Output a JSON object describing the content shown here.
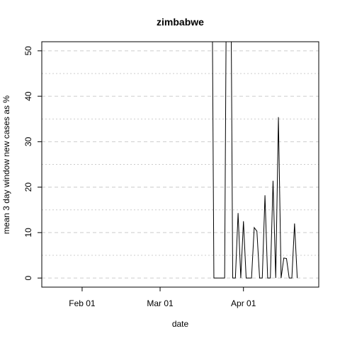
{
  "chart_data": {
    "type": "line",
    "title": "zimbabwe",
    "xlabel": "date",
    "ylabel": "mean  3  day window new cases as %",
    "x_ticks": [
      "Feb 01",
      "Mar 01",
      "Apr 01"
    ],
    "y_ticks": [
      "0",
      "10",
      "20",
      "30",
      "40",
      "50"
    ],
    "ylim": [
      -2,
      52
    ],
    "xlim": [
      "2020-01-17",
      "2020-04-29"
    ],
    "grid": true,
    "grid_style": "dashed-horizontal",
    "line_color": "#000000",
    "grid_color": "#cccccc",
    "series": [
      {
        "x": [
          "2020-03-20",
          "2020-03-21",
          "2020-03-22",
          "2020-03-23",
          "2020-03-24",
          "2020-03-25",
          "2020-03-26",
          "2020-03-27",
          "2020-03-28",
          "2020-03-29",
          "2020-03-30",
          "2020-03-31",
          "2020-04-01",
          "2020-04-02",
          "2020-04-03",
          "2020-04-04",
          "2020-04-05",
          "2020-04-06",
          "2020-04-07",
          "2020-04-08",
          "2020-04-09",
          "2020-04-10",
          "2020-04-11",
          "2020-04-12",
          "2020-04-13",
          "2020-04-14",
          "2020-04-15",
          "2020-04-16",
          "2020-04-17",
          "2020-04-18",
          "2020-04-19",
          "2020-04-20",
          "2020-04-21",
          "2020-04-22",
          "2020-04-23",
          "2020-04-24",
          "2020-04-25",
          "2020-04-26",
          "2020-04-27",
          "2020-04-28"
        ],
        "values": [
          100,
          0,
          0,
          0,
          0,
          0,
          100,
          100,
          0,
          0,
          14.3,
          0,
          12.5,
          0,
          0,
          0,
          11.1,
          10.3,
          0,
          0,
          18.2,
          0,
          0,
          21.4,
          0,
          35.4,
          0,
          4.4,
          4.3,
          0,
          0,
          12.0,
          0,
          null,
          null,
          null,
          null,
          null,
          null,
          null
        ]
      }
    ]
  }
}
